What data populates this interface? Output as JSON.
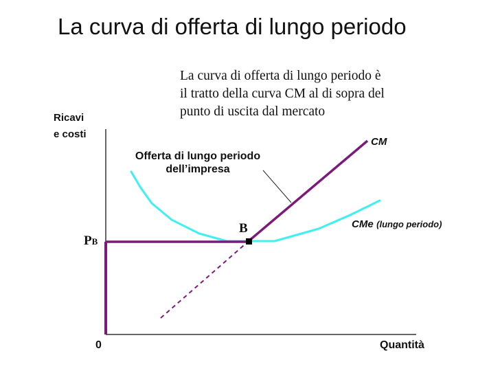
{
  "title": "La curva di offerta di lungo periodo",
  "note": {
    "line1": "La curva di offerta di lungo periodo è",
    "line2": "il tratto della curva CM al di sopra del",
    "line3": "punto di uscita dal mercato"
  },
  "axes": {
    "y_label_line1": "Ricavi",
    "y_label_line2": "e costi",
    "x_label": "Quantità",
    "origin": "0"
  },
  "price_label": {
    "main": "P",
    "subscript": "B"
  },
  "supply_label": {
    "line1": "Offerta di lungo periodo",
    "line2": "dell’impresa"
  },
  "curves": {
    "cm_label": "CM",
    "cme_label": "CMe",
    "cme_qualifier": "(lungo periodo)"
  },
  "point_label": "B",
  "colors": {
    "cm_curve": "#7b1a7b",
    "cme_curve": "#3ff0f0",
    "axis": "#333333",
    "point": "#000000"
  }
}
